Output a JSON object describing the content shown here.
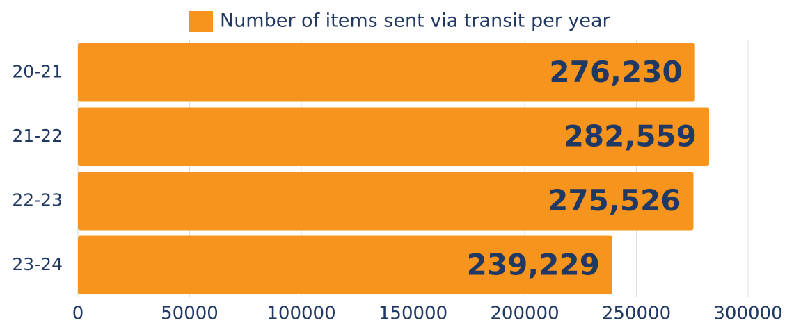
{
  "chart_data": {
    "type": "bar",
    "orientation": "horizontal",
    "categories": [
      "20-21",
      "21-22",
      "22-23",
      "23-24"
    ],
    "series": [
      {
        "name": "Number of items sent via transit per year",
        "color": "#f7941d",
        "values": [
          276230,
          282559,
          275526,
          239229
        ],
        "value_labels": [
          "276,230",
          "282,559",
          "275,526",
          "239,229"
        ]
      }
    ],
    "xlim": [
      0,
      300000
    ],
    "xticks": [
      0,
      50000,
      100000,
      150000,
      200000,
      250000,
      300000
    ],
    "grid": true,
    "legend": "top"
  }
}
